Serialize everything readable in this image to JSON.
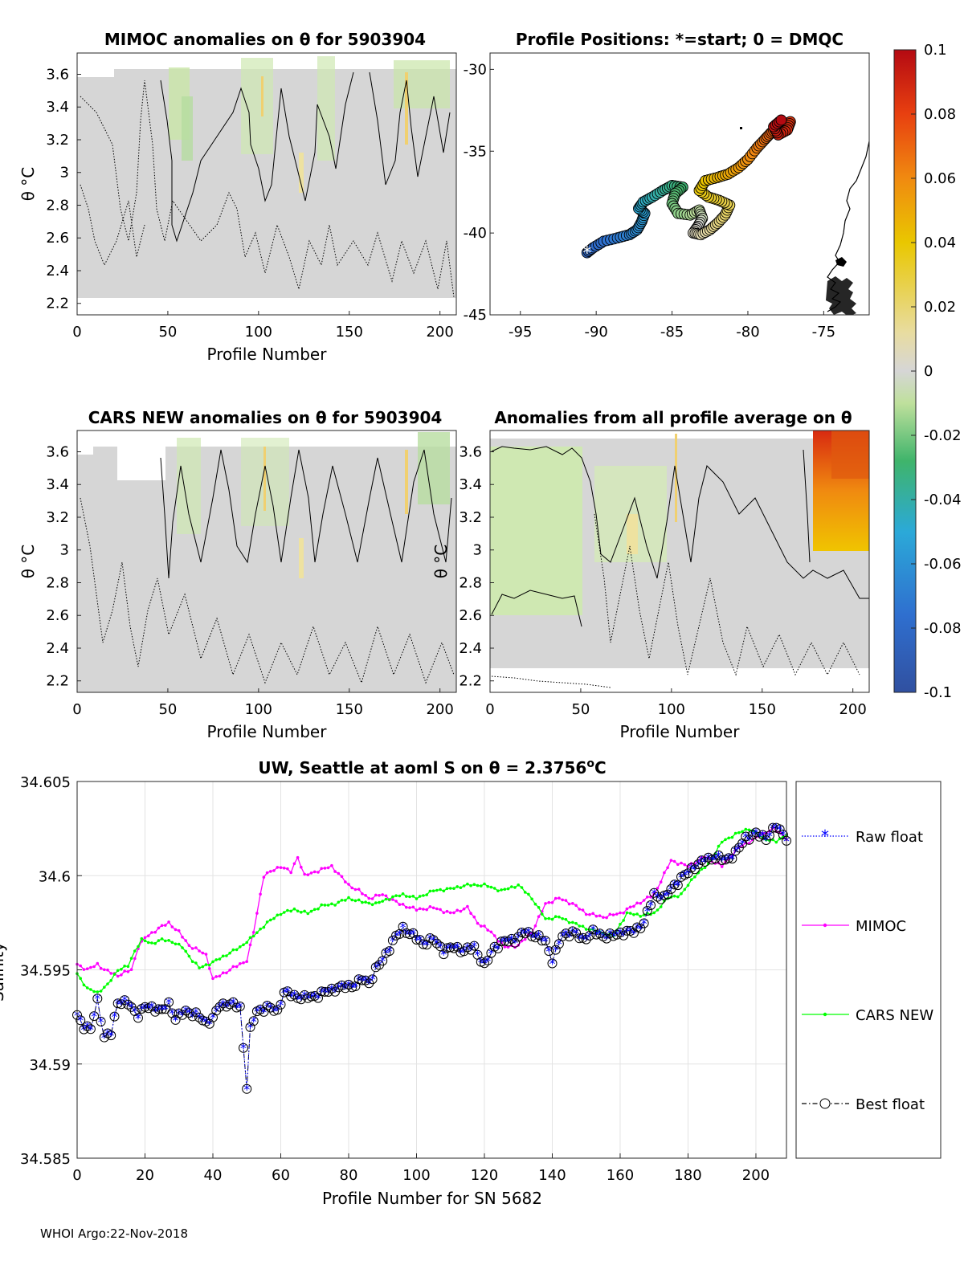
{
  "footer": "WHOI Argo:22-Nov-2018",
  "colorbar": {
    "ticks": [
      "0.1",
      "0.08",
      "0.06",
      "0.04",
      "0.02",
      "0",
      "-0.02",
      "-0.04",
      "-0.06",
      "-0.08",
      "-0.1"
    ]
  },
  "chart_data": [
    {
      "id": "mimoc_anom",
      "type": "heatmap",
      "title": "MIMOC anomalies on θ  for 5903904",
      "xlabel": "Profile Number",
      "ylabel": "θ °C",
      "xlim": [
        0,
        209
      ],
      "ylim": [
        2.13,
        3.73
      ],
      "xticks": [
        "0",
        "50",
        "100",
        "150",
        "200"
      ],
      "yticks": [
        "2.2",
        "2.4",
        "2.6",
        "2.8",
        "3",
        "3.2",
        "3.4",
        "3.6"
      ],
      "clim": [
        -0.1,
        0.1
      ],
      "description_values": "anomalies mostly between -0.02 and 0.02 with contour lines"
    },
    {
      "id": "positions",
      "type": "scatter",
      "title": "Profile Positions: *=start; 0 = DMQC",
      "xlim": [
        -97,
        -72
      ],
      "ylim": [
        -45,
        -29
      ],
      "xticks": [
        "-95",
        "-90",
        "-85",
        "-80",
        "-75"
      ],
      "yticks": [
        "-30",
        "-35",
        "-40",
        "-45"
      ],
      "track": [
        [
          -90.6,
          -41.2
        ],
        [
          -90.2,
          -40.9
        ],
        [
          -89.5,
          -40.5
        ],
        [
          -88.6,
          -40.3
        ],
        [
          -87.8,
          -40.1
        ],
        [
          -87.3,
          -39.8
        ],
        [
          -87.0,
          -39.3
        ],
        [
          -86.8,
          -38.8
        ],
        [
          -87.2,
          -38.5
        ],
        [
          -86.9,
          -38.1
        ],
        [
          -86.3,
          -37.8
        ],
        [
          -85.6,
          -37.4
        ],
        [
          -85.0,
          -37.1
        ],
        [
          -84.3,
          -37.2
        ],
        [
          -84.8,
          -37.6
        ],
        [
          -85.0,
          -38.2
        ],
        [
          -84.6,
          -38.8
        ],
        [
          -83.8,
          -38.9
        ],
        [
          -83.2,
          -38.6
        ],
        [
          -83.0,
          -39.1
        ],
        [
          -83.3,
          -39.6
        ],
        [
          -83.6,
          -40.0
        ],
        [
          -83.1,
          -40.1
        ],
        [
          -82.5,
          -39.8
        ],
        [
          -82.0,
          -39.4
        ],
        [
          -81.5,
          -38.9
        ],
        [
          -81.2,
          -38.3
        ],
        [
          -81.9,
          -38.0
        ],
        [
          -82.6,
          -37.8
        ],
        [
          -83.2,
          -37.4
        ],
        [
          -82.8,
          -36.8
        ],
        [
          -82.0,
          -36.6
        ],
        [
          -81.3,
          -36.4
        ],
        [
          -80.6,
          -36.0
        ],
        [
          -80.0,
          -35.5
        ],
        [
          -79.4,
          -34.8
        ],
        [
          -78.9,
          -34.3
        ],
        [
          -78.5,
          -33.9
        ],
        [
          -78.1,
          -33.6
        ],
        [
          -77.6,
          -33.4
        ],
        [
          -77.2,
          -33.2
        ],
        [
          -77.4,
          -33.7
        ],
        [
          -78.0,
          -34.0
        ],
        [
          -78.3,
          -33.5
        ],
        [
          -77.8,
          -33.1
        ]
      ],
      "start_marker": "*"
    },
    {
      "id": "cars_anom",
      "type": "heatmap",
      "title": "CARS NEW anomalies on θ for 5903904",
      "xlabel": "Profile Number",
      "ylabel": "θ °C",
      "xlim": [
        0,
        209
      ],
      "ylim": [
        2.13,
        3.73
      ],
      "xticks": [
        "0",
        "50",
        "100",
        "150",
        "200"
      ],
      "yticks": [
        "2.2",
        "2.4",
        "2.6",
        "2.8",
        "3",
        "3.2",
        "3.4",
        "3.6"
      ],
      "clim": [
        -0.1,
        0.1
      ]
    },
    {
      "id": "avg_anom",
      "type": "heatmap",
      "title": "Anomalies from all profile average on θ",
      "xlabel": "Profile Number",
      "ylabel": "θ °C",
      "xlim": [
        0,
        209
      ],
      "ylim": [
        2.13,
        3.73
      ],
      "xticks": [
        "0",
        "50",
        "100",
        "150",
        "200"
      ],
      "yticks": [
        "2.2",
        "2.4",
        "2.6",
        "2.8",
        "3",
        "3.2",
        "3.4",
        "3.6"
      ],
      "clim": [
        -0.1,
        0.1
      ]
    },
    {
      "id": "salinity",
      "type": "line",
      "title": "UW, Seattle at aoml S on θ = 2.3756",
      "title_sup": "o",
      "title_unit": "C",
      "xlabel": "Profile Number for SN 5682",
      "ylabel": "Salinity",
      "xlim": [
        0,
        209
      ],
      "ylim": [
        34.585,
        34.605
      ],
      "xticks": [
        "0",
        "20",
        "40",
        "60",
        "80",
        "100",
        "120",
        "140",
        "160",
        "180",
        "200"
      ],
      "yticks": [
        "34.605",
        "34.6",
        "34.595",
        "34.59",
        "34.585"
      ],
      "grid": true,
      "legend_position": "right",
      "anchors": {
        "mimoc": [
          [
            0,
            34.5953
          ],
          [
            3,
            34.595
          ],
          [
            6,
            34.5953
          ],
          [
            8,
            34.595
          ],
          [
            12,
            34.5947
          ],
          [
            16,
            34.595
          ],
          [
            18,
            34.5962
          ],
          [
            20,
            34.5967
          ],
          [
            24,
            34.5972
          ],
          [
            27,
            34.5975
          ],
          [
            30,
            34.597
          ],
          [
            33,
            34.5963
          ],
          [
            36,
            34.596
          ],
          [
            38,
            34.5958
          ],
          [
            40,
            34.5945
          ],
          [
            43,
            34.5948
          ],
          [
            47,
            34.5952
          ],
          [
            50,
            34.5955
          ],
          [
            52,
            34.597
          ],
          [
            55,
            34.6
          ],
          [
            57,
            34.6002
          ],
          [
            60,
            34.6005
          ],
          [
            63,
            34.6002
          ],
          [
            65,
            34.601
          ],
          [
            67,
            34.6
          ],
          [
            70,
            34.6002
          ],
          [
            75,
            34.6005
          ],
          [
            80,
            34.5995
          ],
          [
            83,
            34.5992
          ],
          [
            86,
            34.5988
          ],
          [
            90,
            34.599
          ],
          [
            95,
            34.5985
          ],
          [
            100,
            34.5982
          ],
          [
            105,
            34.5983
          ],
          [
            110,
            34.598
          ],
          [
            115,
            34.5983
          ],
          [
            118,
            34.5975
          ],
          [
            122,
            34.597
          ],
          [
            126,
            34.5962
          ],
          [
            130,
            34.5963
          ],
          [
            134,
            34.597
          ],
          [
            138,
            34.5985
          ],
          [
            142,
            34.5988
          ],
          [
            146,
            34.5985
          ],
          [
            150,
            34.598
          ],
          [
            155,
            34.5978
          ],
          [
            160,
            34.598
          ],
          [
            165,
            34.5985
          ],
          [
            170,
            34.599
          ],
          [
            175,
            34.6008
          ],
          [
            180,
            34.6005
          ],
          [
            185,
            34.601
          ],
          [
            190,
            34.6005
          ],
          [
            195,
            34.6015
          ],
          [
            200,
            34.602
          ],
          [
            205,
            34.6025
          ],
          [
            209,
            34.602
          ]
        ],
        "cars": [
          [
            0,
            34.5948
          ],
          [
            3,
            34.594
          ],
          [
            6,
            34.5938
          ],
          [
            9,
            34.5942
          ],
          [
            12,
            34.595
          ],
          [
            15,
            34.5952
          ],
          [
            17,
            34.596
          ],
          [
            19,
            34.5966
          ],
          [
            22,
            34.5964
          ],
          [
            25,
            34.5966
          ],
          [
            28,
            34.5965
          ],
          [
            31,
            34.5962
          ],
          [
            34,
            34.5955
          ],
          [
            36,
            34.5951
          ],
          [
            40,
            34.5954
          ],
          [
            44,
            34.5958
          ],
          [
            48,
            34.5962
          ],
          [
            52,
            34.5968
          ],
          [
            56,
            34.5975
          ],
          [
            60,
            34.598
          ],
          [
            64,
            34.5982
          ],
          [
            68,
            34.598
          ],
          [
            72,
            34.5984
          ],
          [
            76,
            34.5985
          ],
          [
            80,
            34.5988
          ],
          [
            84,
            34.5986
          ],
          [
            88,
            34.5985
          ],
          [
            92,
            34.5988
          ],
          [
            96,
            34.599
          ],
          [
            100,
            34.5988
          ],
          [
            105,
            34.5992
          ],
          [
            110,
            34.5993
          ],
          [
            115,
            34.5995
          ],
          [
            120,
            34.5995
          ],
          [
            125,
            34.5992
          ],
          [
            130,
            34.5995
          ],
          [
            134,
            34.5988
          ],
          [
            138,
            34.5977
          ],
          [
            142,
            34.5978
          ],
          [
            146,
            34.5975
          ],
          [
            150,
            34.5972
          ],
          [
            154,
            34.597
          ],
          [
            158,
            34.5968
          ],
          [
            162,
            34.598
          ],
          [
            166,
            34.5979
          ],
          [
            170,
            34.598
          ],
          [
            174,
            34.5988
          ],
          [
            178,
            34.599
          ],
          [
            182,
            34.6
          ],
          [
            186,
            34.6006
          ],
          [
            190,
            34.6018
          ],
          [
            194,
            34.6022
          ],
          [
            198,
            34.6025
          ],
          [
            202,
            34.602
          ],
          [
            206,
            34.6018
          ],
          [
            209,
            34.6022
          ]
        ],
        "float": [
          [
            0,
            34.5926
          ],
          [
            2,
            34.592
          ],
          [
            4,
            34.5918
          ],
          [
            6,
            34.5934
          ],
          [
            8,
            34.5914
          ],
          [
            10,
            34.5916
          ],
          [
            12,
            34.5933
          ],
          [
            15,
            34.5932
          ],
          [
            18,
            34.5926
          ],
          [
            20,
            34.593
          ],
          [
            22,
            34.593
          ],
          [
            25,
            34.5928
          ],
          [
            27,
            34.5932
          ],
          [
            29,
            34.5924
          ],
          [
            32,
            34.5928
          ],
          [
            35,
            34.5926
          ],
          [
            38,
            34.5922
          ],
          [
            40,
            34.5924
          ],
          [
            42,
            34.5931
          ],
          [
            45,
            34.5932
          ],
          [
            48,
            34.593
          ],
          [
            50,
            34.5888
          ],
          [
            51,
            34.5918
          ],
          [
            53,
            34.5928
          ],
          [
            56,
            34.593
          ],
          [
            59,
            34.5928
          ],
          [
            61,
            34.5938
          ],
          [
            64,
            34.5936
          ],
          [
            67,
            34.5935
          ],
          [
            70,
            34.5936
          ],
          [
            73,
            34.5938
          ],
          [
            76,
            34.594
          ],
          [
            79,
            34.5941
          ],
          [
            82,
            34.5942
          ],
          [
            84,
            34.5945
          ],
          [
            86,
            34.5943
          ],
          [
            88,
            34.595
          ],
          [
            90,
            34.5955
          ],
          [
            93,
            34.5965
          ],
          [
            96,
            34.5972
          ],
          [
            99,
            34.5968
          ],
          [
            102,
            34.5964
          ],
          [
            105,
            34.5966
          ],
          [
            108,
            34.596
          ],
          [
            111,
            34.5962
          ],
          [
            114,
            34.596
          ],
          [
            117,
            34.5962
          ],
          [
            120,
            34.5952
          ],
          [
            123,
            34.5962
          ],
          [
            126,
            34.5965
          ],
          [
            129,
            34.5966
          ],
          [
            132,
            34.597
          ],
          [
            135,
            34.5968
          ],
          [
            138,
            34.5965
          ],
          [
            140,
            34.5955
          ],
          [
            143,
            34.5968
          ],
          [
            146,
            34.597
          ],
          [
            149,
            34.5966
          ],
          [
            152,
            34.597
          ],
          [
            155,
            34.5968
          ],
          [
            158,
            34.5968
          ],
          [
            161,
            34.597
          ],
          [
            164,
            34.597
          ],
          [
            167,
            34.5975
          ],
          [
            170,
            34.599
          ],
          [
            173,
            34.5988
          ],
          [
            176,
            34.5995
          ],
          [
            179,
            34.6
          ],
          [
            182,
            34.6005
          ],
          [
            185,
            34.6008
          ],
          [
            188,
            34.601
          ],
          [
            191,
            34.6008
          ],
          [
            194,
            34.6012
          ],
          [
            197,
            34.602
          ],
          [
            200,
            34.6022
          ],
          [
            203,
            34.602
          ],
          [
            206,
            34.6026
          ],
          [
            209,
            34.602
          ]
        ]
      },
      "series": [
        {
          "name": "Raw float",
          "color": "#0000ff",
          "style": "dotted",
          "marker": "*"
        },
        {
          "name": "MIMOC",
          "color": "#ff00ff",
          "style": "solid",
          "marker": "."
        },
        {
          "name": "CARS NEW",
          "color": "#00ff00",
          "style": "solid",
          "marker": "."
        },
        {
          "name": "Best float",
          "color": "#000000",
          "style": "dash-dot",
          "marker": "o"
        }
      ]
    }
  ]
}
